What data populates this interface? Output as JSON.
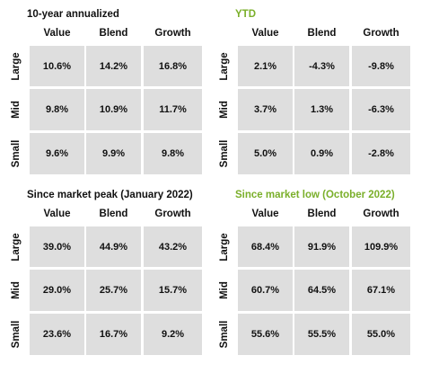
{
  "panels": [
    {
      "title": "10-year annualized",
      "title_color": "#111111",
      "columns": [
        "Value",
        "Blend",
        "Growth"
      ],
      "rows": [
        {
          "label": "Large",
          "cells": [
            "10.6%",
            "14.2%",
            "16.8%"
          ]
        },
        {
          "label": "Mid",
          "cells": [
            "9.8%",
            "10.9%",
            "11.7%"
          ]
        },
        {
          "label": "Small",
          "cells": [
            "9.6%",
            "9.9%",
            "9.8%"
          ]
        }
      ]
    },
    {
      "title": "YTD",
      "title_color": "#7aaf2a",
      "columns": [
        "Value",
        "Blend",
        "Growth"
      ],
      "rows": [
        {
          "label": "Large",
          "cells": [
            "2.1%",
            "-4.3%",
            "-9.8%"
          ]
        },
        {
          "label": "Mid",
          "cells": [
            "3.7%",
            "1.3%",
            "-6.3%"
          ]
        },
        {
          "label": "Small",
          "cells": [
            "5.0%",
            "0.9%",
            "-2.8%"
          ]
        }
      ]
    },
    {
      "title": "Since market peak (January 2022)",
      "title_color": "#111111",
      "columns": [
        "Value",
        "Blend",
        "Growth"
      ],
      "rows": [
        {
          "label": "Large",
          "cells": [
            "39.0%",
            "44.9%",
            "43.2%"
          ]
        },
        {
          "label": "Mid",
          "cells": [
            "29.0%",
            "25.7%",
            "15.7%"
          ]
        },
        {
          "label": "Small",
          "cells": [
            "23.6%",
            "16.7%",
            "9.2%"
          ]
        }
      ]
    },
    {
      "title": "Since market low (October 2022)",
      "title_color": "#7aaf2a",
      "columns": [
        "Value",
        "Blend",
        "Growth"
      ],
      "rows": [
        {
          "label": "Large",
          "cells": [
            "68.4%",
            "91.9%",
            "109.9%"
          ]
        },
        {
          "label": "Mid",
          "cells": [
            "60.7%",
            "64.5%",
            "67.1%"
          ]
        },
        {
          "label": "Small",
          "cells": [
            "55.6%",
            "55.5%",
            "55.0%"
          ]
        }
      ]
    }
  ]
}
